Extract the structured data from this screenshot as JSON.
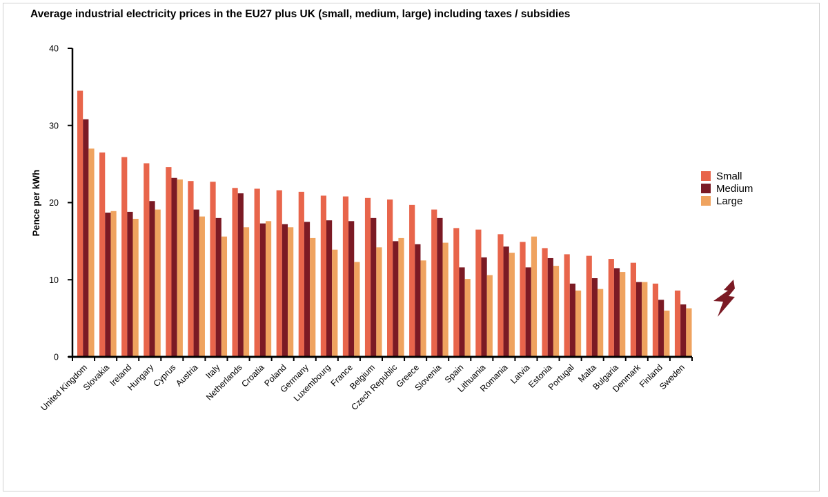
{
  "page": {
    "title": "Average industrial electricity prices in the EU27 plus UK (small, medium, large) including taxes / subsidies"
  },
  "chart_data": {
    "type": "bar",
    "title": "Average industrial electricity prices in the EU27 plus UK (small, medium, large) including taxes / subsidies",
    "xlabel": "",
    "ylabel": "Pence per kWh",
    "ylim": [
      0,
      40
    ],
    "yticks": [
      0,
      10,
      20,
      30,
      40
    ],
    "grid": false,
    "legend_position": "right",
    "categories": [
      "United Kingdom",
      "Slovakia",
      "Ireland",
      "Hungary",
      "Cyprus",
      "Austria",
      "Italy",
      "Netherlands",
      "Croatia",
      "Poland",
      "Germany",
      "Luxembourg",
      "France",
      "Belgium",
      "Czech Republic",
      "Greece",
      "Slovenia",
      "Spain",
      "Lithuania",
      "Romania",
      "Latvia",
      "Estonia",
      "Portugal",
      "Malta",
      "Bulgaria",
      "Denmark",
      "Finland",
      "Sweden"
    ],
    "series": [
      {
        "name": "Small",
        "color": "#e8654b",
        "values": [
          34.5,
          26.5,
          25.9,
          25.1,
          24.6,
          22.8,
          22.7,
          21.9,
          21.8,
          21.6,
          21.4,
          20.9,
          20.8,
          20.6,
          20.4,
          19.7,
          19.1,
          16.7,
          16.5,
          15.9,
          14.9,
          14.1,
          13.3,
          13.1,
          12.7,
          12.2,
          9.5,
          8.6
        ]
      },
      {
        "name": "Medium",
        "color": "#7b1a24",
        "values": [
          30.8,
          18.7,
          18.8,
          20.2,
          23.2,
          19.1,
          18.0,
          21.2,
          17.3,
          17.2,
          17.5,
          17.7,
          17.6,
          18.0,
          15.0,
          14.6,
          18.0,
          11.6,
          12.9,
          14.3,
          11.6,
          12.8,
          9.5,
          10.2,
          11.5,
          9.7,
          7.4,
          6.8
        ]
      },
      {
        "name": "Large",
        "color": "#efa35f",
        "values": [
          27.0,
          18.9,
          17.9,
          19.1,
          23.0,
          18.2,
          15.6,
          16.8,
          17.6,
          16.8,
          15.4,
          13.9,
          12.3,
          14.2,
          15.4,
          12.5,
          14.8,
          10.1,
          10.6,
          13.5,
          15.6,
          11.8,
          8.6,
          8.8,
          11.0,
          9.7,
          6.0,
          6.3
        ]
      }
    ]
  },
  "decor": {
    "icon": "lightning-bolt-icon",
    "icon_color": "#7b1a24"
  }
}
